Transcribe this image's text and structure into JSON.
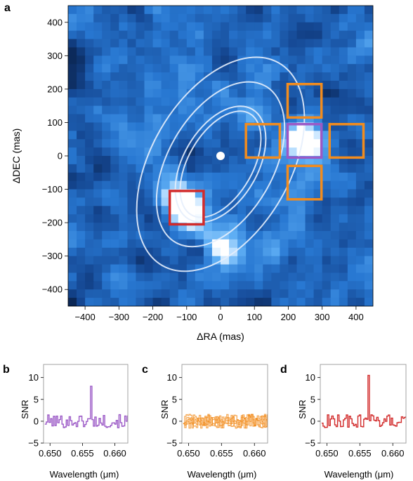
{
  "panel_labels": {
    "a": "a",
    "b": "b",
    "c": "c",
    "d": "d"
  },
  "colors": {
    "purple": "#9b59c6",
    "orange": "#f28c1e",
    "red": "#d22b2b",
    "ellipse": "#e6eefc",
    "star": "#ffffff"
  },
  "chart_data": [
    {
      "type": "heatmap",
      "panel": "a",
      "xlabel": "ΔRA (mas)",
      "ylabel": "ΔDEC (mas)",
      "xlim": [
        -450,
        450
      ],
      "ylim": [
        -450,
        450
      ],
      "xticks": [
        -400,
        -300,
        -200,
        -100,
        0,
        100,
        200,
        300,
        400
      ],
      "yticks": [
        -400,
        -300,
        -200,
        -100,
        0,
        100,
        200,
        300,
        400
      ],
      "colormap": "blue-white",
      "star": {
        "x": 0,
        "y": 0
      },
      "ellipses": [
        {
          "cx": 0,
          "cy": -25,
          "rx": 95,
          "ry": 175,
          "angle": 30
        },
        {
          "cx": 0,
          "cy": -25,
          "rx": 110,
          "ry": 190,
          "angle": 30
        },
        {
          "cx": 0,
          "cy": -25,
          "rx": 155,
          "ry": 270,
          "angle": 30
        },
        {
          "cx": 0,
          "cy": -25,
          "rx": 205,
          "ry": 350,
          "angle": 30
        }
      ],
      "apertures": [
        {
          "color": "purple",
          "x": 248,
          "y": 45,
          "w": 100,
          "h": 100
        },
        {
          "color": "orange",
          "x": 248,
          "y": 165,
          "w": 100,
          "h": 100
        },
        {
          "color": "orange",
          "x": 248,
          "y": -80,
          "w": 100,
          "h": 100
        },
        {
          "color": "orange",
          "x": 125,
          "y": 45,
          "w": 100,
          "h": 100
        },
        {
          "color": "orange",
          "x": 372,
          "y": 45,
          "w": 100,
          "h": 100
        },
        {
          "color": "red",
          "x": -100,
          "y": -155,
          "w": 100,
          "h": 100
        }
      ],
      "bright_spots": [
        {
          "x": 250,
          "y": 45,
          "intensity": 1.0
        },
        {
          "x": -100,
          "y": -155,
          "intensity": 1.0
        },
        {
          "x": 20,
          "y": -280,
          "intensity": 0.7
        }
      ]
    },
    {
      "type": "line",
      "panel": "b",
      "color": "purple",
      "xlabel": "Wavelength (μm)",
      "ylabel": "SNR",
      "xlim": [
        0.649,
        0.662
      ],
      "ylim": [
        -5,
        13
      ],
      "xticks": [
        0.65,
        0.655,
        0.66
      ],
      "yticks": [
        -5,
        0,
        5,
        10
      ],
      "line_peak": {
        "x": 0.6563,
        "y": 8
      }
    },
    {
      "type": "line",
      "panel": "c",
      "color": "orange",
      "xlabel": "Wavelength (μm)",
      "ylabel": "SNR",
      "xlim": [
        0.649,
        0.662
      ],
      "ylim": [
        -5,
        13
      ],
      "xticks": [
        0.65,
        0.655,
        0.66
      ],
      "yticks": [
        -5,
        0,
        5,
        10
      ],
      "series_count": 4,
      "line_peak": null
    },
    {
      "type": "line",
      "panel": "d",
      "color": "red",
      "xlabel": "Wavelength (μm)",
      "ylabel": "SNR",
      "xlim": [
        0.649,
        0.662
      ],
      "ylim": [
        -5,
        13
      ],
      "xticks": [
        0.65,
        0.655,
        0.66
      ],
      "yticks": [
        -5,
        0,
        5,
        10
      ],
      "line_peak": {
        "x": 0.6563,
        "y": 10.5
      }
    }
  ]
}
